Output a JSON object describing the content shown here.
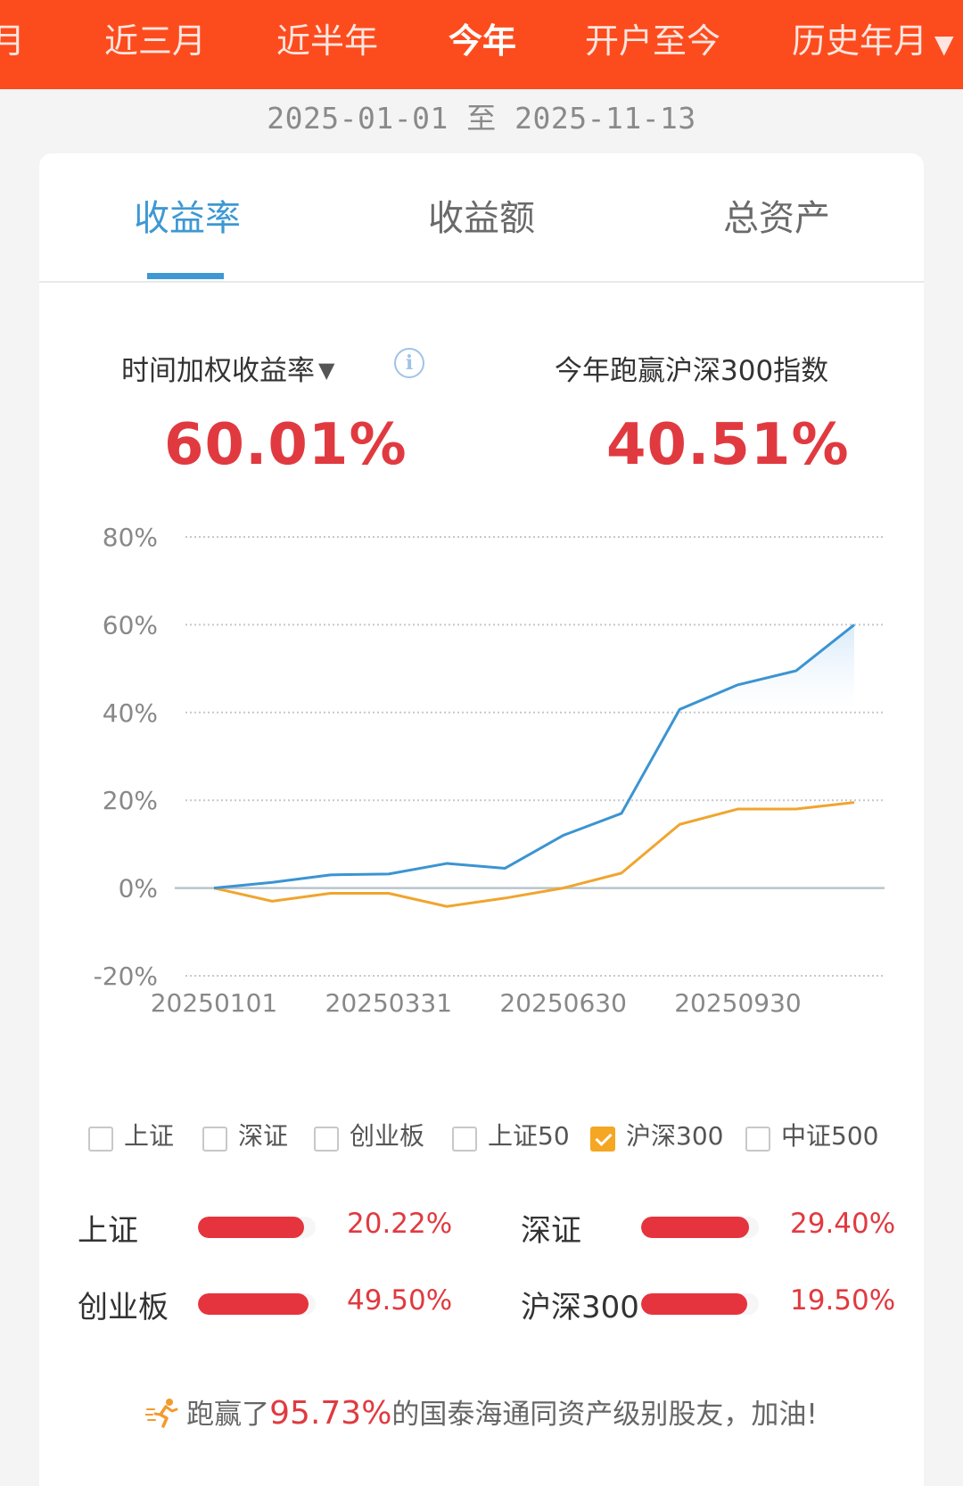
{
  "top_tabs": [
    {
      "label": "月"
    },
    {
      "label": "近三月"
    },
    {
      "label": "近半年"
    },
    {
      "label": "今年",
      "active": true
    },
    {
      "label": "开户至今"
    },
    {
      "label": "历史年月"
    }
  ],
  "date_range": "2025-01-01 至 2025-11-13",
  "sub_tabs": [
    {
      "label": "收益率",
      "active": true
    },
    {
      "label": "收益额"
    },
    {
      "label": "总资产"
    }
  ],
  "metrics": {
    "left_label": "时间加权收益率",
    "left_value": "60.01%",
    "right_label": "今年跑赢沪深300指数",
    "right_value": "40.51%"
  },
  "chart_data": {
    "type": "line",
    "y_ticks": [
      "80%",
      "60%",
      "40%",
      "20%",
      "0%",
      "-20%"
    ],
    "ylim": [
      -20,
      80
    ],
    "x_tick_labels": [
      "20250101",
      "20250331",
      "20250630",
      "20250930"
    ],
    "series": [
      {
        "color": "#3b94d2",
        "values": [
          0,
          1.3,
          3.0,
          3.2,
          5.6,
          4.5,
          12.0,
          17.0,
          40.7,
          46.3,
          49.5,
          60.0
        ]
      },
      {
        "name": "沪深300",
        "color": "#f0a52f",
        "values": [
          0,
          -3.0,
          -1.2,
          -1.2,
          -4.2,
          -2.3,
          0,
          3.4,
          14.5,
          18.0,
          18.0,
          19.5
        ]
      }
    ],
    "x_tick_indices": [
      0,
      3,
      6,
      9
    ],
    "grid": true
  },
  "legend": [
    {
      "label": "上证",
      "checked": false
    },
    {
      "label": "深证",
      "checked": false
    },
    {
      "label": "创业板",
      "checked": false
    },
    {
      "label": "上证50",
      "checked": false
    },
    {
      "label": "沪深300",
      "checked": true
    },
    {
      "label": "中证500",
      "checked": false
    }
  ],
  "indices": [
    {
      "name": "上证",
      "value": "20.22%",
      "fill": 0.9
    },
    {
      "name": "深证",
      "value": "29.40%",
      "fill": 0.92
    },
    {
      "name": "创业板",
      "value": "49.50%",
      "fill": 0.94
    },
    {
      "name": "沪深300",
      "value": "19.50%",
      "fill": 0.9
    }
  ],
  "footer": {
    "prefix": "跑赢了",
    "percent": "95.73%",
    "suffix": "的国泰海通同资产级别股友，加油!"
  },
  "colors": {
    "brand_orange": "#fc4c1e",
    "accent_blue": "#3d98d3",
    "value_red": "#e03a40",
    "benchmark_orange": "#f0a52f"
  }
}
